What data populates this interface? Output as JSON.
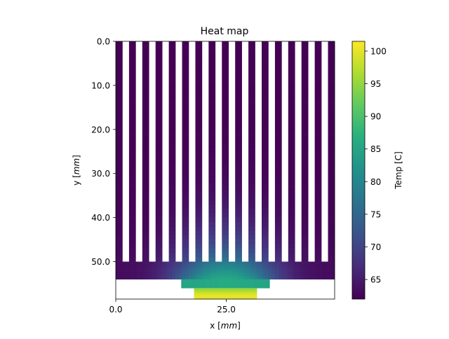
{
  "chart_data": {
    "type": "heatmap",
    "title": "Heat map",
    "xlabel_prefix": "x [",
    "xlabel_unit": "mm",
    "xlabel_suffix": "]",
    "ylabel_prefix": "y [",
    "ylabel_unit": "mm",
    "ylabel_suffix": "]",
    "colorbar_label": "Temp [C]",
    "xlim": [
      0,
      49.5
    ],
    "ylim": [
      58.5,
      0
    ],
    "xticks": [
      0,
      25
    ],
    "xtick_labels": [
      "0.0",
      "25.0"
    ],
    "yticks": [
      0,
      10,
      20,
      30,
      40,
      50
    ],
    "ytick_labels": [
      "0.0",
      "10.0",
      "20.0",
      "30.0",
      "40.0",
      "50.0"
    ],
    "colorbar_range": [
      62,
      101.5
    ],
    "colorbar_ticks": [
      65,
      70,
      75,
      80,
      85,
      90,
      95,
      100
    ],
    "colorbar_tick_labels": [
      "65",
      "70",
      "75",
      "80",
      "85",
      "90",
      "95",
      "100"
    ],
    "colormap": "viridis",
    "geometry_mm": {
      "fin_count": 17,
      "fin_width": 1.5,
      "fin_pitch": 3.0,
      "fin_top": 0,
      "fin_bottom": 50,
      "base_top": 50,
      "base_bottom": 54,
      "spreader_x": [
        14.8,
        34.8
      ],
      "spreader_y": [
        54,
        56
      ],
      "chip_x": [
        17.7,
        31.9
      ],
      "chip_y": [
        56,
        58.5
      ]
    },
    "temperature_model": {
      "fin_tip_temp": 62,
      "base_edge_temp": 63,
      "base_center_temp": 78,
      "spreader_temp": 86,
      "chip_temp": 100
    }
  }
}
